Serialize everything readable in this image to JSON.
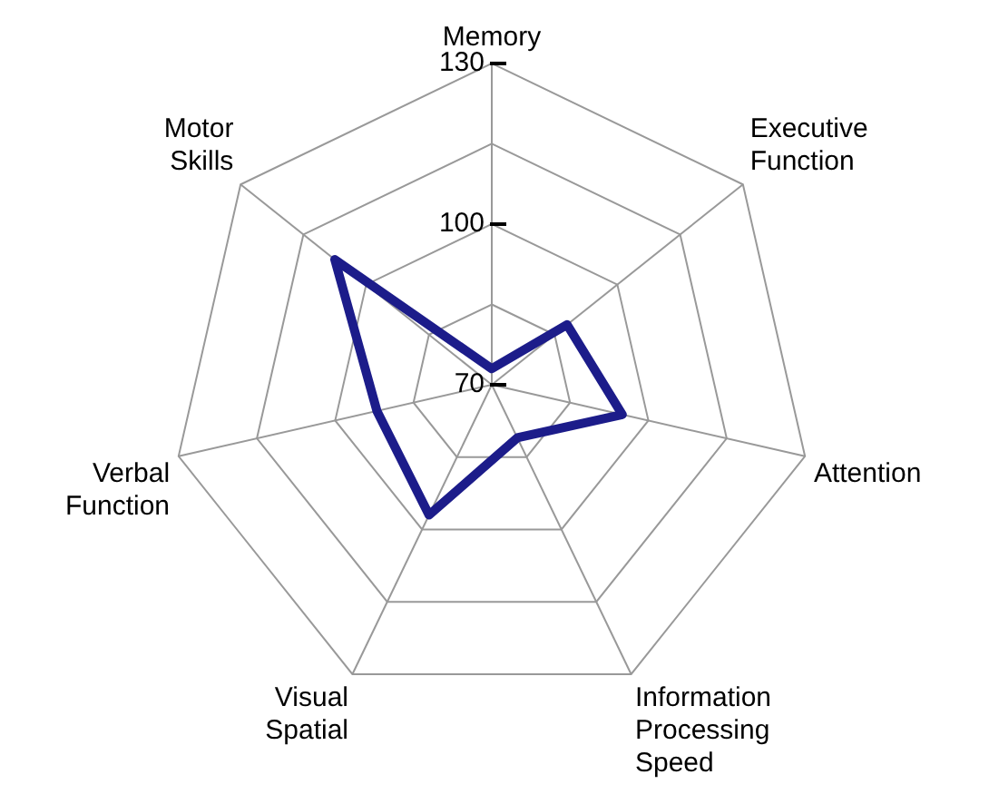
{
  "chart_data": {
    "type": "radar",
    "categories": [
      "Memory",
      "Executive Function",
      "Attention",
      "Information Processing Speed",
      "Visual Spatial",
      "Verbal Function",
      "Motor Skills"
    ],
    "series": [
      {
        "color": "#1c1c8a",
        "values": [
          73,
          88,
          95,
          81,
          97,
          92,
          107.5
        ]
      }
    ],
    "ylim": [
      70,
      130
    ],
    "yticks": [
      70,
      100,
      130
    ],
    "grid": true,
    "legend": false,
    "marker": "none",
    "line_style": "solid"
  }
}
